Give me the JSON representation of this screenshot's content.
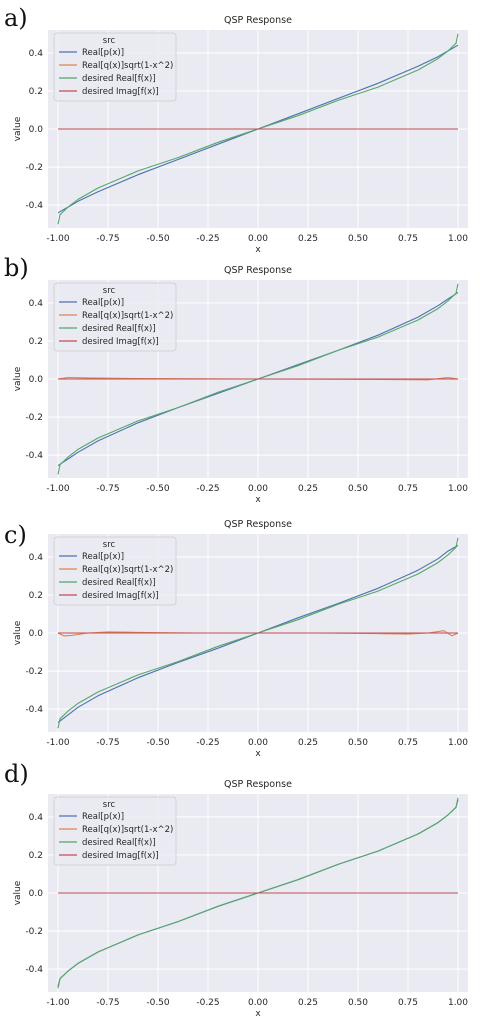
{
  "panels": [
    {
      "label": "a)",
      "title": "QSP Response",
      "xlabel": "x",
      "ylabel": "value"
    },
    {
      "label": "b)",
      "title": "QSP Response",
      "xlabel": "x",
      "ylabel": "value"
    },
    {
      "label": "c)",
      "title": "QSP Response",
      "xlabel": "x",
      "ylabel": "value"
    },
    {
      "label": "d)",
      "title": "QSP Response",
      "xlabel": "x",
      "ylabel": "value"
    }
  ],
  "chart_data": [
    {
      "type": "line",
      "title": "QSP Response",
      "xlabel": "x",
      "ylabel": "value",
      "xlim": [
        -1.05,
        1.05
      ],
      "ylim": [
        -0.52,
        0.52
      ],
      "xticks": [
        "-1.00",
        "-0.75",
        "-0.50",
        "-0.25",
        "0.00",
        "0.25",
        "0.50",
        "0.75",
        "1.00"
      ],
      "yticks": [
        "-0.4",
        "-0.2",
        "0.0",
        "0.2",
        "0.4"
      ],
      "grid": true,
      "legend_title": "src",
      "legend_position": "top-left",
      "background": "#eaeaf2",
      "series": [
        {
          "name": "Real[p(x)]",
          "color": "#4c72b0",
          "x": [
            -1.0,
            -0.95,
            -0.9,
            -0.8,
            -0.6,
            -0.4,
            -0.2,
            0.0,
            0.2,
            0.4,
            0.6,
            0.8,
            0.9,
            0.95,
            1.0
          ],
          "y": [
            -0.44,
            -0.41,
            -0.38,
            -0.33,
            -0.24,
            -0.16,
            -0.08,
            0.0,
            0.08,
            0.16,
            0.24,
            0.33,
            0.38,
            0.41,
            0.44
          ]
        },
        {
          "name": "Real[q(x)]sqrt(1-x^2)",
          "color": "#dd8452",
          "x": [
            -1.0,
            -0.5,
            0.0,
            0.5,
            1.0
          ],
          "y": [
            0.0,
            0.0,
            0.0,
            0.0,
            0.0
          ]
        },
        {
          "name": "desired Real[f(x)]",
          "color": "#55a868",
          "x": [
            -1.0,
            -0.99,
            -0.95,
            -0.9,
            -0.8,
            -0.6,
            -0.4,
            -0.2,
            0.0,
            0.2,
            0.4,
            0.6,
            0.8,
            0.9,
            0.95,
            0.99,
            1.0
          ],
          "y": [
            -0.5,
            -0.45,
            -0.41,
            -0.37,
            -0.31,
            -0.22,
            -0.15,
            -0.07,
            0.0,
            0.07,
            0.15,
            0.22,
            0.31,
            0.37,
            0.41,
            0.45,
            0.5
          ]
        },
        {
          "name": "desired Imag[f(x)]",
          "color": "#c44e52",
          "x": [
            -1.0,
            0.0,
            1.0
          ],
          "y": [
            0.0,
            0.0,
            0.0
          ]
        }
      ]
    },
    {
      "type": "line",
      "title": "QSP Response",
      "xlabel": "x",
      "ylabel": "value",
      "xlim": [
        -1.05,
        1.05
      ],
      "ylim": [
        -0.52,
        0.52
      ],
      "xticks": [
        "-1.00",
        "-0.75",
        "-0.50",
        "-0.25",
        "0.00",
        "0.25",
        "0.50",
        "0.75",
        "1.00"
      ],
      "yticks": [
        "-0.4",
        "-0.2",
        "0.0",
        "0.2",
        "0.4"
      ],
      "grid": true,
      "legend_title": "src",
      "legend_position": "top-left",
      "background": "#eaeaf2",
      "series": [
        {
          "name": "Real[p(x)]",
          "color": "#4c72b0",
          "x": [
            -1.0,
            -0.95,
            -0.9,
            -0.8,
            -0.6,
            -0.4,
            -0.2,
            0.0,
            0.2,
            0.4,
            0.6,
            0.8,
            0.9,
            0.95,
            1.0
          ],
          "y": [
            -0.455,
            -0.42,
            -0.385,
            -0.325,
            -0.23,
            -0.15,
            -0.075,
            0.0,
            0.075,
            0.15,
            0.23,
            0.325,
            0.385,
            0.42,
            0.455
          ]
        },
        {
          "name": "Real[q(x)]sqrt(1-x^2)",
          "color": "#dd8452",
          "x": [
            -1.0,
            -0.95,
            -0.85,
            -0.6,
            -0.3,
            0.0,
            0.3,
            0.6,
            0.85,
            0.95,
            1.0
          ],
          "y": [
            0.0,
            0.008,
            0.006,
            0.002,
            0.001,
            0.0,
            -0.001,
            -0.002,
            -0.004,
            0.008,
            0.0
          ]
        },
        {
          "name": "desired Real[f(x)]",
          "color": "#55a868",
          "x": [
            -1.0,
            -0.99,
            -0.95,
            -0.9,
            -0.8,
            -0.6,
            -0.4,
            -0.2,
            0.0,
            0.2,
            0.4,
            0.6,
            0.8,
            0.9,
            0.95,
            0.99,
            1.0
          ],
          "y": [
            -0.5,
            -0.45,
            -0.41,
            -0.37,
            -0.31,
            -0.22,
            -0.15,
            -0.07,
            0.0,
            0.07,
            0.15,
            0.22,
            0.31,
            0.37,
            0.41,
            0.45,
            0.5
          ]
        },
        {
          "name": "desired Imag[f(x)]",
          "color": "#c44e52",
          "x": [
            -1.0,
            0.0,
            1.0
          ],
          "y": [
            0.0,
            0.0,
            0.0
          ]
        }
      ]
    },
    {
      "type": "line",
      "title": "QSP Response",
      "xlabel": "x",
      "ylabel": "value",
      "xlim": [
        -1.05,
        1.05
      ],
      "ylim": [
        -0.52,
        0.52
      ],
      "xticks": [
        "-1.00",
        "-0.75",
        "-0.50",
        "-0.25",
        "0.00",
        "0.25",
        "0.50",
        "0.75",
        "1.00"
      ],
      "yticks": [
        "-0.4",
        "-0.2",
        "0.0",
        "0.2",
        "0.4"
      ],
      "grid": true,
      "legend_title": "src",
      "legend_position": "top-left",
      "background": "#eaeaf2",
      "series": [
        {
          "name": "Real[p(x)]",
          "color": "#4c72b0",
          "x": [
            -1.0,
            -0.95,
            -0.9,
            -0.8,
            -0.6,
            -0.4,
            -0.2,
            0.0,
            0.2,
            0.4,
            0.6,
            0.8,
            0.9,
            0.95,
            1.0
          ],
          "y": [
            -0.47,
            -0.43,
            -0.39,
            -0.33,
            -0.235,
            -0.155,
            -0.08,
            0.0,
            0.08,
            0.155,
            0.235,
            0.33,
            0.39,
            0.43,
            0.46
          ]
        },
        {
          "name": "Real[q(x)]sqrt(1-x^2)",
          "color": "#dd8452",
          "x": [
            -1.0,
            -0.97,
            -0.93,
            -0.85,
            -0.75,
            -0.6,
            -0.3,
            0.0,
            0.3,
            0.6,
            0.75,
            0.85,
            0.93,
            0.97,
            1.0
          ],
          "y": [
            0.0,
            -0.015,
            -0.012,
            0.0,
            0.006,
            0.003,
            0.0,
            0.0,
            0.0,
            -0.003,
            -0.006,
            0.0,
            0.012,
            -0.015,
            0.0
          ]
        },
        {
          "name": "desired Real[f(x)]",
          "color": "#55a868",
          "x": [
            -1.0,
            -0.99,
            -0.95,
            -0.9,
            -0.8,
            -0.6,
            -0.4,
            -0.2,
            0.0,
            0.2,
            0.4,
            0.6,
            0.8,
            0.9,
            0.95,
            0.99,
            1.0
          ],
          "y": [
            -0.5,
            -0.45,
            -0.41,
            -0.37,
            -0.31,
            -0.22,
            -0.15,
            -0.07,
            0.0,
            0.07,
            0.15,
            0.22,
            0.31,
            0.37,
            0.41,
            0.45,
            0.5
          ]
        },
        {
          "name": "desired Imag[f(x)]",
          "color": "#c44e52",
          "x": [
            -1.0,
            0.0,
            1.0
          ],
          "y": [
            0.0,
            0.0,
            0.0
          ]
        }
      ]
    },
    {
      "type": "line",
      "title": "QSP Response",
      "xlabel": "x",
      "ylabel": "value",
      "xlim": [
        -1.05,
        1.05
      ],
      "ylim": [
        -0.52,
        0.52
      ],
      "xticks": [
        "-1.00",
        "-0.75",
        "-0.50",
        "-0.25",
        "0.00",
        "0.25",
        "0.50",
        "0.75",
        "1.00"
      ],
      "yticks": [
        "-0.4",
        "-0.2",
        "0.0",
        "0.2",
        "0.4"
      ],
      "grid": true,
      "legend_title": "src",
      "legend_position": "top-left",
      "background": "#eaeaf2",
      "series": [
        {
          "name": "Real[p(x)]",
          "color": "#4c72b0",
          "x": [
            -1.0,
            -0.99,
            -0.95,
            -0.9,
            -0.8,
            -0.6,
            -0.4,
            -0.2,
            0.0,
            0.2,
            0.4,
            0.6,
            0.8,
            0.9,
            0.95,
            0.99,
            1.0
          ],
          "y": [
            -0.49,
            -0.45,
            -0.41,
            -0.37,
            -0.31,
            -0.22,
            -0.15,
            -0.07,
            0.0,
            0.07,
            0.15,
            0.22,
            0.31,
            0.37,
            0.41,
            0.45,
            0.49
          ]
        },
        {
          "name": "Real[q(x)]sqrt(1-x^2)",
          "color": "#dd8452",
          "x": [
            -1.0,
            0.0,
            1.0
          ],
          "y": [
            0.0,
            0.0,
            0.0
          ]
        },
        {
          "name": "desired Real[f(x)]",
          "color": "#55a868",
          "x": [
            -1.0,
            -0.99,
            -0.95,
            -0.9,
            -0.8,
            -0.6,
            -0.4,
            -0.2,
            0.0,
            0.2,
            0.4,
            0.6,
            0.8,
            0.9,
            0.95,
            0.99,
            1.0
          ],
          "y": [
            -0.5,
            -0.45,
            -0.41,
            -0.37,
            -0.31,
            -0.22,
            -0.15,
            -0.07,
            0.0,
            0.07,
            0.15,
            0.22,
            0.31,
            0.37,
            0.41,
            0.45,
            0.5
          ]
        },
        {
          "name": "desired Imag[f(x)]",
          "color": "#c44e52",
          "x": [
            -1.0,
            0.0,
            1.0
          ],
          "y": [
            0.0,
            0.0,
            0.0
          ]
        }
      ]
    }
  ]
}
